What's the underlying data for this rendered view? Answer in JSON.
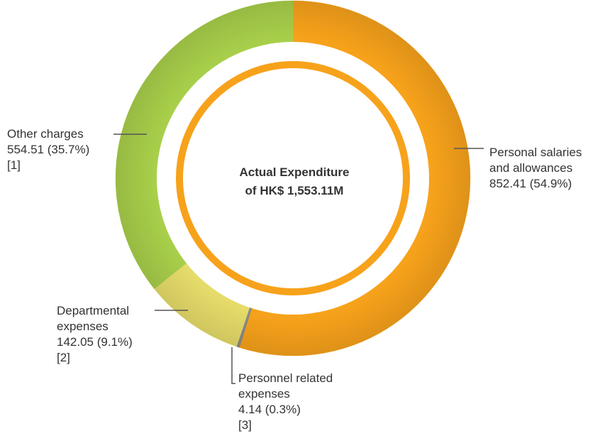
{
  "chart_data": {
    "type": "pie",
    "center_title": [
      "Actual Expenditure",
      "of HK$ 1,553.11M"
    ],
    "total": 1553.11,
    "slices": [
      {
        "label_lines": [
          "Personal salaries",
          "and allowances"
        ],
        "value": 852.41,
        "value_text": "852.41 (54.9%)",
        "note": "",
        "color": "#f7a21b"
      },
      {
        "label_lines": [
          "Personnel related",
          "expenses"
        ],
        "value": 4.14,
        "value_text": "4.14 (0.3%)",
        "note": "[3]",
        "color": "#8a8a8a"
      },
      {
        "label_lines": [
          "Departmental",
          "expenses"
        ],
        "value": 142.05,
        "value_text": "142.05 (9.1%)",
        "note": "[2]",
        "color": "#e6dc6a"
      },
      {
        "label_lines": [
          "Other charges"
        ],
        "value": 554.51,
        "value_text": "554.51 (35.7%)",
        "note": "[1]",
        "color": "#a8cf4a"
      }
    ],
    "legend": "none"
  }
}
